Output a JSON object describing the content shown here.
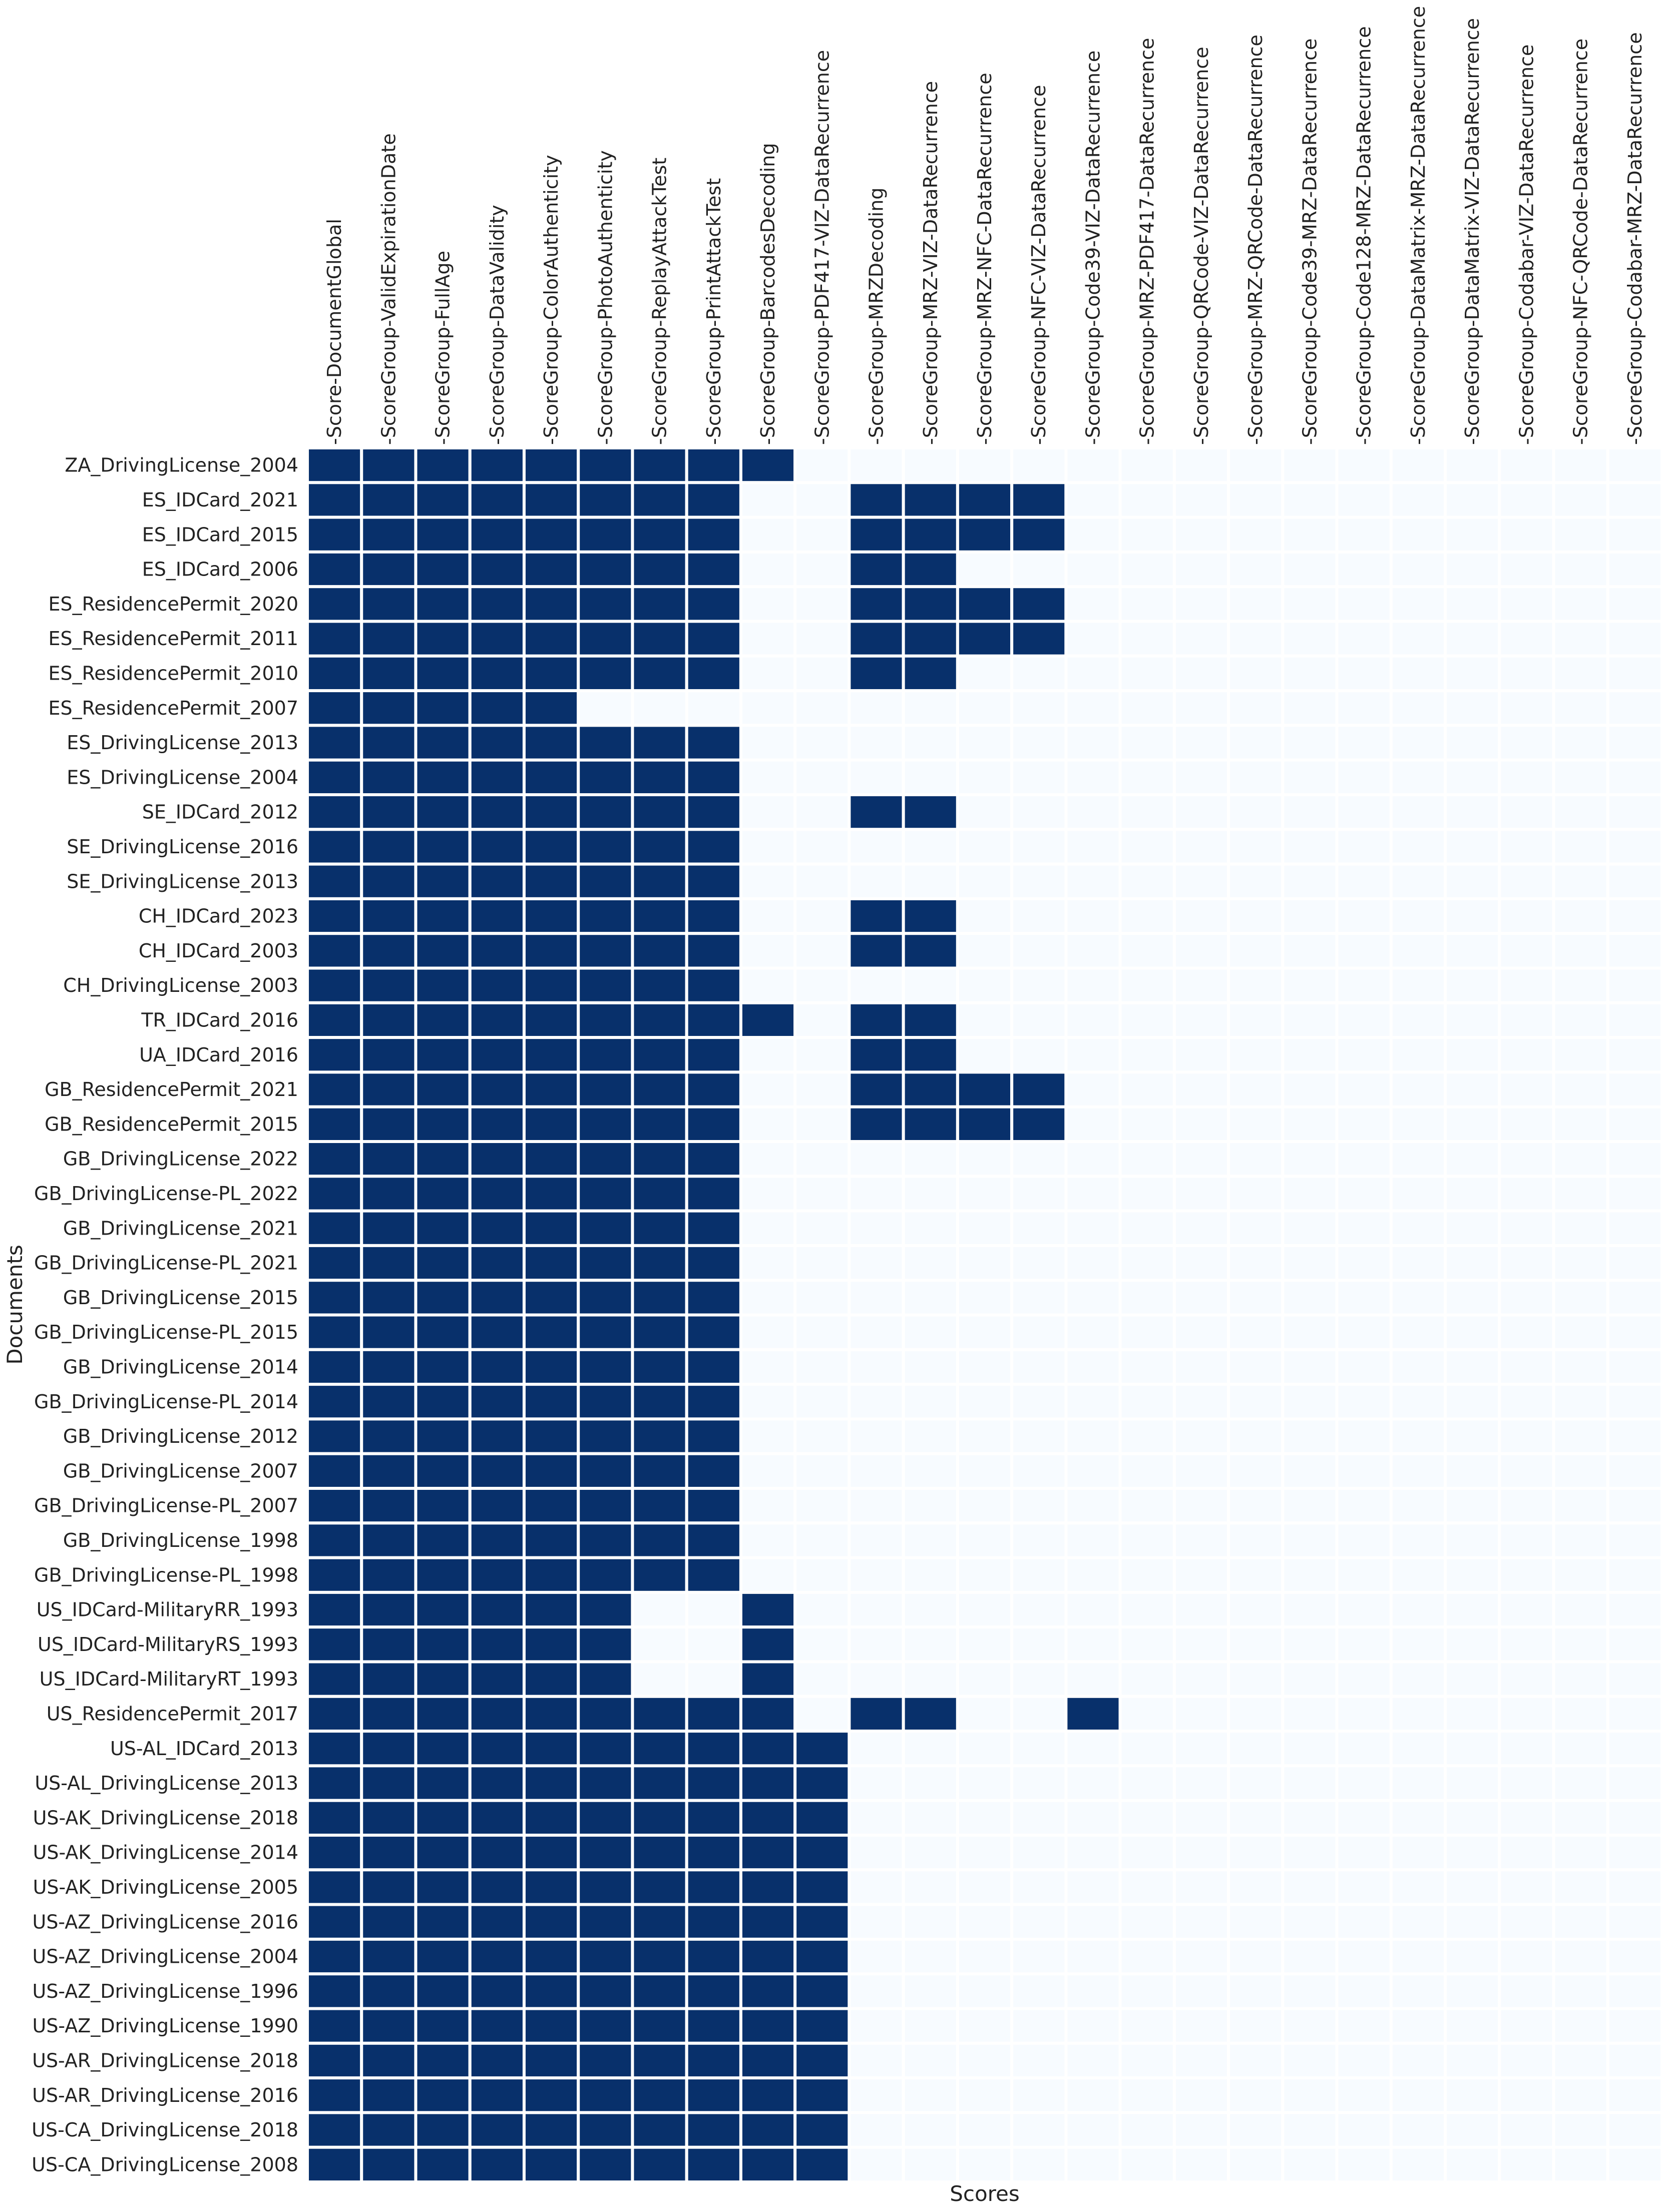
{
  "chart_data": {
    "type": "heatmap",
    "xlabel": "Scores",
    "ylabel": "Documents",
    "colors": {
      "on": "#08306b",
      "off": "#f7fbff",
      "grid": "#ffffff"
    },
    "columns": [
      "Score-DocumentGlobal",
      "ScoreGroup-ValidExpirationDate",
      "ScoreGroup-FullAge",
      "ScoreGroup-DataValidity",
      "ScoreGroup-ColorAuthenticity",
      "ScoreGroup-PhotoAuthenticity",
      "ScoreGroup-ReplayAttackTest",
      "ScoreGroup-PrintAttackTest",
      "ScoreGroup-BarcodesDecoding",
      "ScoreGroup-PDF417-VIZ-DataRecurrence",
      "ScoreGroup-MRZDecoding",
      "ScoreGroup-MRZ-VIZ-DataRecurrence",
      "ScoreGroup-MRZ-NFC-DataRecurrence",
      "ScoreGroup-NFC-VIZ-DataRecurrence",
      "ScoreGroup-Code39-VIZ-DataRecurrence",
      "ScoreGroup-MRZ-PDF417-DataRecurrence",
      "ScoreGroup-QRCode-VIZ-DataRecurrence",
      "ScoreGroup-MRZ-QRCode-DataRecurrence",
      "ScoreGroup-Code39-MRZ-DataRecurrence",
      "ScoreGroup-Code128-MRZ-DataRecurrence",
      "ScoreGroup-DataMatrix-MRZ-DataRecurrence",
      "ScoreGroup-DataMatrix-VIZ-DataRecurrence",
      "ScoreGroup-Codabar-VIZ-DataRecurrence",
      "ScoreGroup-NFC-QRCode-DataRecurrence",
      "ScoreGroup-Codabar-MRZ-DataRecurrence"
    ],
    "rows": [
      "ZA_DrivingLicense_2004",
      "ES_IDCard_2021",
      "ES_IDCard_2015",
      "ES_IDCard_2006",
      "ES_ResidencePermit_2020",
      "ES_ResidencePermit_2011",
      "ES_ResidencePermit_2010",
      "ES_ResidencePermit_2007",
      "ES_DrivingLicense_2013",
      "ES_DrivingLicense_2004",
      "SE_IDCard_2012",
      "SE_DrivingLicense_2016",
      "SE_DrivingLicense_2013",
      "CH_IDCard_2023",
      "CH_IDCard_2003",
      "CH_DrivingLicense_2003",
      "TR_IDCard_2016",
      "UA_IDCard_2016",
      "GB_ResidencePermit_2021",
      "GB_ResidencePermit_2015",
      "GB_DrivingLicense_2022",
      "GB_DrivingLicense-PL_2022",
      "GB_DrivingLicense_2021",
      "GB_DrivingLicense-PL_2021",
      "GB_DrivingLicense_2015",
      "GB_DrivingLicense-PL_2015",
      "GB_DrivingLicense_2014",
      "GB_DrivingLicense-PL_2014",
      "GB_DrivingLicense_2012",
      "GB_DrivingLicense_2007",
      "GB_DrivingLicense-PL_2007",
      "GB_DrivingLicense_1998",
      "GB_DrivingLicense-PL_1998",
      "US_IDCard-MilitaryRR_1993",
      "US_IDCard-MilitaryRS_1993",
      "US_IDCard-MilitaryRT_1993",
      "US_ResidencePermit_2017",
      "US-AL_IDCard_2013",
      "US-AL_DrivingLicense_2013",
      "US-AK_DrivingLicense_2018",
      "US-AK_DrivingLicense_2014",
      "US-AK_DrivingLicense_2005",
      "US-AZ_DrivingLicense_2016",
      "US-AZ_DrivingLicense_2004",
      "US-AZ_DrivingLicense_1996",
      "US-AZ_DrivingLicense_1990",
      "US-AR_DrivingLicense_2018",
      "US-AR_DrivingLicense_2016",
      "US-CA_DrivingLicense_2018",
      "US-CA_DrivingLicense_2008"
    ],
    "values": [
      [
        1,
        1,
        1,
        1,
        1,
        1,
        1,
        1,
        1,
        0,
        0,
        0,
        0,
        0,
        0,
        0,
        0,
        0,
        0,
        0,
        0,
        0,
        0,
        0,
        0
      ],
      [
        1,
        1,
        1,
        1,
        1,
        1,
        1,
        1,
        0,
        0,
        1,
        1,
        1,
        1,
        0,
        0,
        0,
        0,
        0,
        0,
        0,
        0,
        0,
        0,
        0
      ],
      [
        1,
        1,
        1,
        1,
        1,
        1,
        1,
        1,
        0,
        0,
        1,
        1,
        1,
        1,
        0,
        0,
        0,
        0,
        0,
        0,
        0,
        0,
        0,
        0,
        0
      ],
      [
        1,
        1,
        1,
        1,
        1,
        1,
        1,
        1,
        0,
        0,
        1,
        1,
        0,
        0,
        0,
        0,
        0,
        0,
        0,
        0,
        0,
        0,
        0,
        0,
        0
      ],
      [
        1,
        1,
        1,
        1,
        1,
        1,
        1,
        1,
        0,
        0,
        1,
        1,
        1,
        1,
        0,
        0,
        0,
        0,
        0,
        0,
        0,
        0,
        0,
        0,
        0
      ],
      [
        1,
        1,
        1,
        1,
        1,
        1,
        1,
        1,
        0,
        0,
        1,
        1,
        1,
        1,
        0,
        0,
        0,
        0,
        0,
        0,
        0,
        0,
        0,
        0,
        0
      ],
      [
        1,
        1,
        1,
        1,
        1,
        1,
        1,
        1,
        0,
        0,
        1,
        1,
        0,
        0,
        0,
        0,
        0,
        0,
        0,
        0,
        0,
        0,
        0,
        0,
        0
      ],
      [
        1,
        1,
        1,
        1,
        1,
        0,
        0,
        0,
        0,
        0,
        0,
        0,
        0,
        0,
        0,
        0,
        0,
        0,
        0,
        0,
        0,
        0,
        0,
        0,
        0
      ],
      [
        1,
        1,
        1,
        1,
        1,
        1,
        1,
        1,
        0,
        0,
        0,
        0,
        0,
        0,
        0,
        0,
        0,
        0,
        0,
        0,
        0,
        0,
        0,
        0,
        0
      ],
      [
        1,
        1,
        1,
        1,
        1,
        1,
        1,
        1,
        0,
        0,
        0,
        0,
        0,
        0,
        0,
        0,
        0,
        0,
        0,
        0,
        0,
        0,
        0,
        0,
        0
      ],
      [
        1,
        1,
        1,
        1,
        1,
        1,
        1,
        1,
        0,
        0,
        1,
        1,
        0,
        0,
        0,
        0,
        0,
        0,
        0,
        0,
        0,
        0,
        0,
        0,
        0
      ],
      [
        1,
        1,
        1,
        1,
        1,
        1,
        1,
        1,
        0,
        0,
        0,
        0,
        0,
        0,
        0,
        0,
        0,
        0,
        0,
        0,
        0,
        0,
        0,
        0,
        0
      ],
      [
        1,
        1,
        1,
        1,
        1,
        1,
        1,
        1,
        0,
        0,
        0,
        0,
        0,
        0,
        0,
        0,
        0,
        0,
        0,
        0,
        0,
        0,
        0,
        0,
        0
      ],
      [
        1,
        1,
        1,
        1,
        1,
        1,
        1,
        1,
        0,
        0,
        1,
        1,
        0,
        0,
        0,
        0,
        0,
        0,
        0,
        0,
        0,
        0,
        0,
        0,
        0
      ],
      [
        1,
        1,
        1,
        1,
        1,
        1,
        1,
        1,
        0,
        0,
        1,
        1,
        0,
        0,
        0,
        0,
        0,
        0,
        0,
        0,
        0,
        0,
        0,
        0,
        0
      ],
      [
        1,
        1,
        1,
        1,
        1,
        1,
        1,
        1,
        0,
        0,
        0,
        0,
        0,
        0,
        0,
        0,
        0,
        0,
        0,
        0,
        0,
        0,
        0,
        0,
        0
      ],
      [
        1,
        1,
        1,
        1,
        1,
        1,
        1,
        1,
        1,
        0,
        1,
        1,
        0,
        0,
        0,
        0,
        0,
        0,
        0,
        0,
        0,
        0,
        0,
        0,
        0
      ],
      [
        1,
        1,
        1,
        1,
        1,
        1,
        1,
        1,
        0,
        0,
        1,
        1,
        0,
        0,
        0,
        0,
        0,
        0,
        0,
        0,
        0,
        0,
        0,
        0,
        0
      ],
      [
        1,
        1,
        1,
        1,
        1,
        1,
        1,
        1,
        0,
        0,
        1,
        1,
        1,
        1,
        0,
        0,
        0,
        0,
        0,
        0,
        0,
        0,
        0,
        0,
        0
      ],
      [
        1,
        1,
        1,
        1,
        1,
        1,
        1,
        1,
        0,
        0,
        1,
        1,
        1,
        1,
        0,
        0,
        0,
        0,
        0,
        0,
        0,
        0,
        0,
        0,
        0
      ],
      [
        1,
        1,
        1,
        1,
        1,
        1,
        1,
        1,
        0,
        0,
        0,
        0,
        0,
        0,
        0,
        0,
        0,
        0,
        0,
        0,
        0,
        0,
        0,
        0,
        0
      ],
      [
        1,
        1,
        1,
        1,
        1,
        1,
        1,
        1,
        0,
        0,
        0,
        0,
        0,
        0,
        0,
        0,
        0,
        0,
        0,
        0,
        0,
        0,
        0,
        0,
        0
      ],
      [
        1,
        1,
        1,
        1,
        1,
        1,
        1,
        1,
        0,
        0,
        0,
        0,
        0,
        0,
        0,
        0,
        0,
        0,
        0,
        0,
        0,
        0,
        0,
        0,
        0
      ],
      [
        1,
        1,
        1,
        1,
        1,
        1,
        1,
        1,
        0,
        0,
        0,
        0,
        0,
        0,
        0,
        0,
        0,
        0,
        0,
        0,
        0,
        0,
        0,
        0,
        0
      ],
      [
        1,
        1,
        1,
        1,
        1,
        1,
        1,
        1,
        0,
        0,
        0,
        0,
        0,
        0,
        0,
        0,
        0,
        0,
        0,
        0,
        0,
        0,
        0,
        0,
        0
      ],
      [
        1,
        1,
        1,
        1,
        1,
        1,
        1,
        1,
        0,
        0,
        0,
        0,
        0,
        0,
        0,
        0,
        0,
        0,
        0,
        0,
        0,
        0,
        0,
        0,
        0
      ],
      [
        1,
        1,
        1,
        1,
        1,
        1,
        1,
        1,
        0,
        0,
        0,
        0,
        0,
        0,
        0,
        0,
        0,
        0,
        0,
        0,
        0,
        0,
        0,
        0,
        0
      ],
      [
        1,
        1,
        1,
        1,
        1,
        1,
        1,
        1,
        0,
        0,
        0,
        0,
        0,
        0,
        0,
        0,
        0,
        0,
        0,
        0,
        0,
        0,
        0,
        0,
        0
      ],
      [
        1,
        1,
        1,
        1,
        1,
        1,
        1,
        1,
        0,
        0,
        0,
        0,
        0,
        0,
        0,
        0,
        0,
        0,
        0,
        0,
        0,
        0,
        0,
        0,
        0
      ],
      [
        1,
        1,
        1,
        1,
        1,
        1,
        1,
        1,
        0,
        0,
        0,
        0,
        0,
        0,
        0,
        0,
        0,
        0,
        0,
        0,
        0,
        0,
        0,
        0,
        0
      ],
      [
        1,
        1,
        1,
        1,
        1,
        1,
        1,
        1,
        0,
        0,
        0,
        0,
        0,
        0,
        0,
        0,
        0,
        0,
        0,
        0,
        0,
        0,
        0,
        0,
        0
      ],
      [
        1,
        1,
        1,
        1,
        1,
        1,
        1,
        1,
        0,
        0,
        0,
        0,
        0,
        0,
        0,
        0,
        0,
        0,
        0,
        0,
        0,
        0,
        0,
        0,
        0
      ],
      [
        1,
        1,
        1,
        1,
        1,
        1,
        1,
        1,
        0,
        0,
        0,
        0,
        0,
        0,
        0,
        0,
        0,
        0,
        0,
        0,
        0,
        0,
        0,
        0,
        0
      ],
      [
        1,
        1,
        1,
        1,
        1,
        1,
        0,
        0,
        1,
        0,
        0,
        0,
        0,
        0,
        0,
        0,
        0,
        0,
        0,
        0,
        0,
        0,
        0,
        0,
        0
      ],
      [
        1,
        1,
        1,
        1,
        1,
        1,
        0,
        0,
        1,
        0,
        0,
        0,
        0,
        0,
        0,
        0,
        0,
        0,
        0,
        0,
        0,
        0,
        0,
        0,
        0
      ],
      [
        1,
        1,
        1,
        1,
        1,
        1,
        0,
        0,
        1,
        0,
        0,
        0,
        0,
        0,
        0,
        0,
        0,
        0,
        0,
        0,
        0,
        0,
        0,
        0,
        0
      ],
      [
        1,
        1,
        1,
        1,
        1,
        1,
        1,
        1,
        1,
        0,
        1,
        1,
        0,
        0,
        1,
        0,
        0,
        0,
        0,
        0,
        0,
        0,
        0,
        0,
        0
      ],
      [
        1,
        1,
        1,
        1,
        1,
        1,
        1,
        1,
        1,
        1,
        0,
        0,
        0,
        0,
        0,
        0,
        0,
        0,
        0,
        0,
        0,
        0,
        0,
        0,
        0
      ],
      [
        1,
        1,
        1,
        1,
        1,
        1,
        1,
        1,
        1,
        1,
        0,
        0,
        0,
        0,
        0,
        0,
        0,
        0,
        0,
        0,
        0,
        0,
        0,
        0,
        0
      ],
      [
        1,
        1,
        1,
        1,
        1,
        1,
        1,
        1,
        1,
        1,
        0,
        0,
        0,
        0,
        0,
        0,
        0,
        0,
        0,
        0,
        0,
        0,
        0,
        0,
        0
      ],
      [
        1,
        1,
        1,
        1,
        1,
        1,
        1,
        1,
        1,
        1,
        0,
        0,
        0,
        0,
        0,
        0,
        0,
        0,
        0,
        0,
        0,
        0,
        0,
        0,
        0
      ],
      [
        1,
        1,
        1,
        1,
        1,
        1,
        1,
        1,
        1,
        1,
        0,
        0,
        0,
        0,
        0,
        0,
        0,
        0,
        0,
        0,
        0,
        0,
        0,
        0,
        0
      ],
      [
        1,
        1,
        1,
        1,
        1,
        1,
        1,
        1,
        1,
        1,
        0,
        0,
        0,
        0,
        0,
        0,
        0,
        0,
        0,
        0,
        0,
        0,
        0,
        0,
        0
      ],
      [
        1,
        1,
        1,
        1,
        1,
        1,
        1,
        1,
        1,
        1,
        0,
        0,
        0,
        0,
        0,
        0,
        0,
        0,
        0,
        0,
        0,
        0,
        0,
        0,
        0
      ],
      [
        1,
        1,
        1,
        1,
        1,
        1,
        1,
        1,
        1,
        1,
        0,
        0,
        0,
        0,
        0,
        0,
        0,
        0,
        0,
        0,
        0,
        0,
        0,
        0,
        0
      ],
      [
        1,
        1,
        1,
        1,
        1,
        1,
        1,
        1,
        1,
        1,
        0,
        0,
        0,
        0,
        0,
        0,
        0,
        0,
        0,
        0,
        0,
        0,
        0,
        0,
        0
      ],
      [
        1,
        1,
        1,
        1,
        1,
        1,
        1,
        1,
        1,
        1,
        0,
        0,
        0,
        0,
        0,
        0,
        0,
        0,
        0,
        0,
        0,
        0,
        0,
        0,
        0
      ],
      [
        1,
        1,
        1,
        1,
        1,
        1,
        1,
        1,
        1,
        1,
        0,
        0,
        0,
        0,
        0,
        0,
        0,
        0,
        0,
        0,
        0,
        0,
        0,
        0,
        0
      ],
      [
        1,
        1,
        1,
        1,
        1,
        1,
        1,
        1,
        1,
        1,
        0,
        0,
        0,
        0,
        0,
        0,
        0,
        0,
        0,
        0,
        0,
        0,
        0,
        0,
        0
      ],
      [
        1,
        1,
        1,
        1,
        1,
        1,
        1,
        1,
        1,
        1,
        0,
        0,
        0,
        0,
        0,
        0,
        0,
        0,
        0,
        0,
        0,
        0,
        0,
        0,
        0
      ]
    ]
  }
}
